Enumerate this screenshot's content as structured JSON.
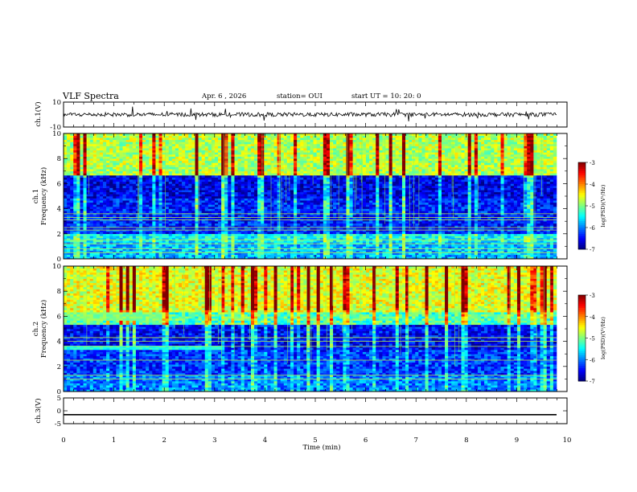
{
  "header": {
    "title": "VLF Spectra",
    "date": "Apr. 6 , 2026",
    "station": "station= OUI",
    "start_ut": "start UT = 10: 20: 0"
  },
  "colors": {
    "spectrogram_low": "#00007f",
    "spectrogram_mid": "#00ff3c",
    "spectrogram_high": "#ff0000",
    "waveform_line": "#000000",
    "axis": "#000000"
  },
  "chart_data": [
    {
      "type": "line",
      "panel": "ch1-waveform",
      "ylabel": "ch.1(V)",
      "ylim": [
        -10,
        10
      ],
      "y_ticks": [
        "10",
        "-10"
      ],
      "xlim": [
        0,
        10
      ],
      "description_of_series": "noisy waveform centered near 0 V with spikes",
      "approx_level": 0,
      "approx_amplitude": 2
    },
    {
      "type": "heatmap",
      "panel": "ch1-spectrogram",
      "ylabel": "Frequency (kHz)",
      "channel_label": "ch.1",
      "ylim": [
        0,
        10
      ],
      "y_ticks": [
        "0",
        "2",
        "4",
        "6",
        "8",
        "10"
      ],
      "xlim": [
        0,
        10
      ],
      "colorbar": {
        "label": "log(PSD)(V²/Hz)",
        "range": [
          -7,
          -3
        ],
        "ticks": [
          "-3",
          "-4",
          "-5",
          "-6",
          "-7"
        ]
      },
      "bands": [
        {
          "freq_range": [
            0,
            1.4
          ],
          "log_psd": -5.8
        },
        {
          "freq_range": [
            1.4,
            2.0
          ],
          "log_psd": -5.5
        },
        {
          "freq_range": [
            2.0,
            4.8
          ],
          "log_psd": -6.4
        },
        {
          "freq_range": [
            4.8,
            6.6
          ],
          "log_psd": -6.6
        },
        {
          "freq_range": [
            6.6,
            10
          ],
          "log_psd": -4.8
        }
      ],
      "line_frequencies_khz": [
        0.5,
        0.8,
        1.2,
        1.5,
        2.3,
        2.5,
        3.1,
        3.3,
        3.6
      ]
    },
    {
      "type": "heatmap",
      "panel": "ch2-spectrogram",
      "ylabel": "Frequency (kHz)",
      "channel_label": "ch.2",
      "ylim": [
        0,
        10
      ],
      "y_ticks": [
        "0",
        "2",
        "4",
        "6",
        "8",
        "10"
      ],
      "xlim": [
        0,
        10
      ],
      "colorbar": {
        "label": "log(PSD)(V²/Hz)",
        "range": [
          -7,
          -3
        ],
        "ticks": [
          "-3",
          "-4",
          "-5",
          "-6",
          "-7"
        ]
      },
      "bands": [
        {
          "freq_range": [
            0,
            1.4
          ],
          "log_psd": -6.0
        },
        {
          "freq_range": [
            1.4,
            3.4
          ],
          "log_psd": -6.3
        },
        {
          "freq_range": [
            3.4,
            5.4
          ],
          "log_psd": -6.5
        },
        {
          "freq_range": [
            5.4,
            6.4
          ],
          "log_psd": -5.2
        },
        {
          "freq_range": [
            6.4,
            10
          ],
          "log_psd": -4.6
        }
      ],
      "line_frequencies_khz": [
        1.0,
        1.3,
        2.5,
        3.6,
        4.0,
        4.3
      ]
    },
    {
      "type": "line",
      "panel": "ch3-waveform",
      "ylabel": "ch.3(V)",
      "ylim": [
        -5,
        5
      ],
      "y_ticks": [
        "5",
        "0",
        "-5"
      ],
      "xlim": [
        0,
        10
      ],
      "approx_level": -1.5
    }
  ],
  "x_axis": {
    "label": "Time (min)",
    "ticks": [
      "0",
      "1",
      "2",
      "3",
      "4",
      "5",
      "6",
      "7",
      "8",
      "9",
      "10"
    ]
  }
}
